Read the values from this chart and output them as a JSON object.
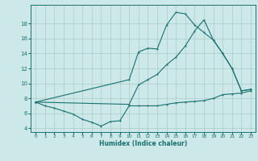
{
  "xlabel": "Humidex (Indice chaleur)",
  "xlim": [
    -0.5,
    23.5
  ],
  "ylim": [
    3.5,
    20.5
  ],
  "xticks": [
    0,
    1,
    2,
    3,
    4,
    5,
    6,
    7,
    8,
    9,
    10,
    11,
    12,
    13,
    14,
    15,
    16,
    17,
    18,
    19,
    20,
    21,
    22,
    23
  ],
  "yticks": [
    4,
    6,
    8,
    10,
    12,
    14,
    16,
    18
  ],
  "bg_color": "#cce8e8",
  "line_color": "#1a7070",
  "grid_color": "#aacccc",
  "line1_x": [
    0,
    1,
    2,
    3,
    4,
    5,
    6,
    7,
    8,
    9,
    10,
    11,
    12,
    13,
    14,
    15,
    16,
    17,
    18,
    19,
    20,
    21,
    22,
    23
  ],
  "line1_y": [
    7.5,
    7.0,
    6.7,
    6.3,
    5.9,
    5.2,
    4.8,
    4.3,
    4.9,
    5.0,
    7.0,
    7.0,
    7.0,
    7.0,
    7.2,
    7.4,
    7.5,
    7.6,
    7.7,
    8.0,
    8.5,
    8.6,
    8.7,
    9.0
  ],
  "line2_x": [
    0,
    10,
    11,
    12,
    13,
    14,
    15,
    16,
    17,
    18,
    19,
    20,
    21,
    22,
    23
  ],
  "line2_y": [
    7.5,
    10.5,
    14.2,
    14.7,
    14.6,
    17.8,
    19.5,
    19.3,
    17.8,
    16.8,
    15.8,
    14.0,
    12.0,
    9.0,
    9.2
  ],
  "line3_x": [
    0,
    10,
    11,
    12,
    13,
    14,
    15,
    16,
    17,
    18,
    19,
    20,
    21,
    22,
    23
  ],
  "line3_y": [
    7.5,
    7.2,
    9.8,
    10.5,
    11.2,
    12.5,
    13.5,
    15.0,
    17.0,
    18.5,
    15.8,
    14.0,
    12.0,
    9.0,
    9.2
  ]
}
